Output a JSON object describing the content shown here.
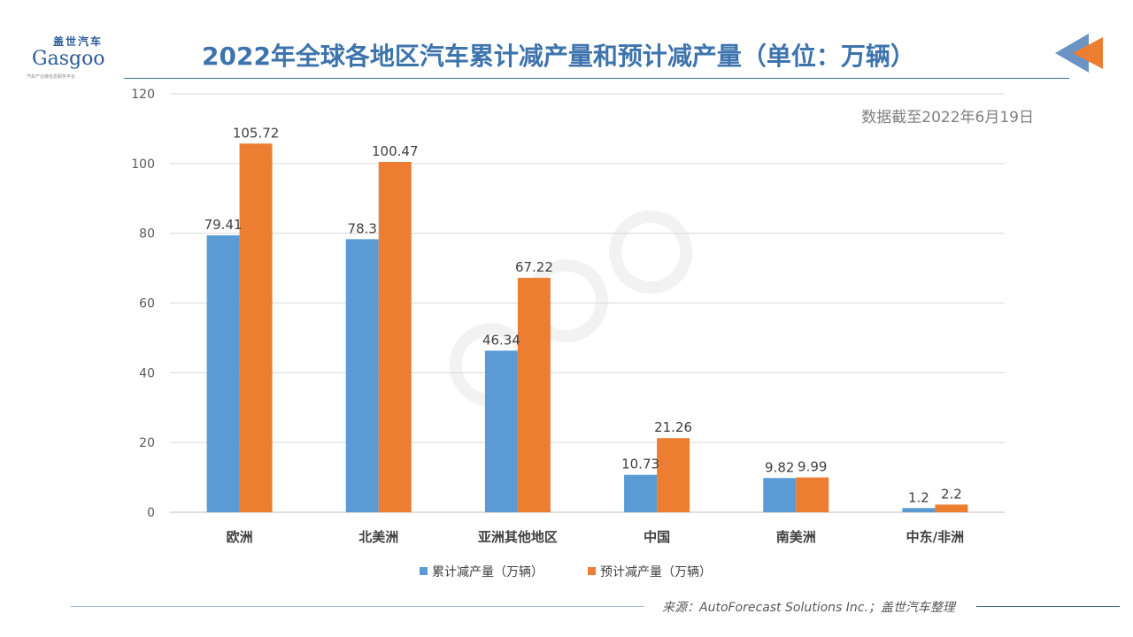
{
  "logo": {
    "cn": "盖世汽车",
    "en": "Gasgoo",
    "sub": "汽车产业链信息服务平台"
  },
  "watermark": "盖世汽车 Gasgoo",
  "header": {
    "title": "2022年全球各地区汽车累计减产量和预计减产量（单位：万辆）"
  },
  "note": "数据截至2022年6月19日",
  "footer": {
    "source": "来源：AutoForecast Solutions Inc.；盖世汽车整理"
  },
  "colors": {
    "series1": "#5b9bd5",
    "series2": "#ed7d31",
    "title": "#3e74ad"
  },
  "chart_data": {
    "type": "bar",
    "categories": [
      "欧洲",
      "北美洲",
      "亚洲其他地区",
      "中国",
      "南美洲",
      "中东/非洲"
    ],
    "series": [
      {
        "name": "累计减产量（万辆）",
        "values": [
          79.41,
          78.3,
          46.34,
          10.73,
          9.82,
          1.2
        ]
      },
      {
        "name": "预计减产量（万辆）",
        "values": [
          105.72,
          100.47,
          67.22,
          21.26,
          9.99,
          2.2
        ]
      }
    ],
    "ylim": [
      0,
      120
    ],
    "yticks": [
      0,
      20,
      40,
      60,
      80,
      100,
      120
    ],
    "grid": true,
    "legend": "bottom"
  }
}
